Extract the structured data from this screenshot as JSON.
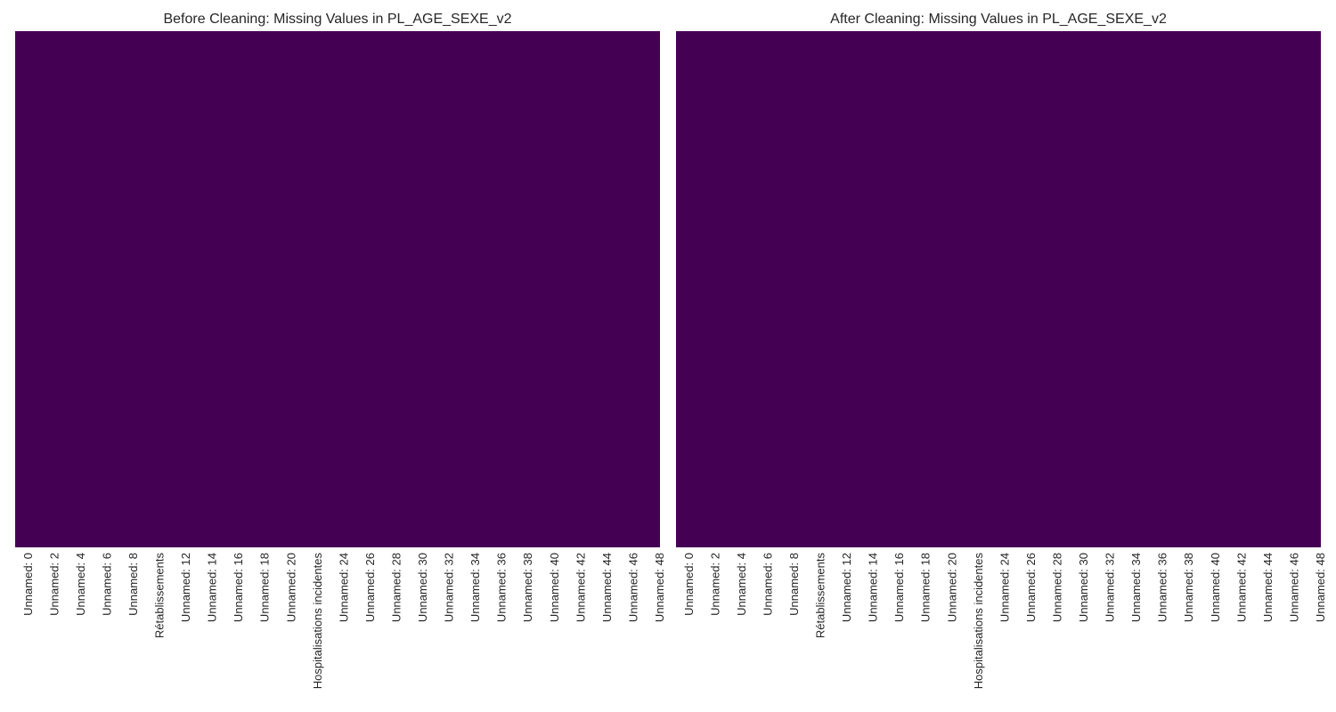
{
  "chart_data": [
    {
      "type": "heatmap",
      "title": "Before Cleaning: Missing Values in PL_AGE_SEXE_v2",
      "x_tick_labels": [
        "Unnamed: 0",
        "Unnamed: 2",
        "Unnamed: 4",
        "Unnamed: 6",
        "Unnamed: 8",
        "Rétablissements",
        "Unnamed: 12",
        "Unnamed: 14",
        "Unnamed: 16",
        "Unnamed: 18",
        "Unnamed: 20",
        "Hospitalisations incidentes",
        "Unnamed: 24",
        "Unnamed: 26",
        "Unnamed: 28",
        "Unnamed: 30",
        "Unnamed: 32",
        "Unnamed: 34",
        "Unnamed: 36",
        "Unnamed: 38",
        "Unnamed: 40",
        "Unnamed: 42",
        "Unnamed: 44",
        "Unnamed: 46",
        "Unnamed: 48"
      ],
      "y_tick_labels": [],
      "missing_cells": 0,
      "fill_color": "#440154",
      "colorbar": false,
      "grid": false
    },
    {
      "type": "heatmap",
      "title": "After Cleaning: Missing Values in PL_AGE_SEXE_v2",
      "x_tick_labels": [
        "Unnamed: 0",
        "Unnamed: 2",
        "Unnamed: 4",
        "Unnamed: 6",
        "Unnamed: 8",
        "Rétablissements",
        "Unnamed: 12",
        "Unnamed: 14",
        "Unnamed: 16",
        "Unnamed: 18",
        "Unnamed: 20",
        "Hospitalisations incidentes",
        "Unnamed: 24",
        "Unnamed: 26",
        "Unnamed: 28",
        "Unnamed: 30",
        "Unnamed: 32",
        "Unnamed: 34",
        "Unnamed: 36",
        "Unnamed: 38",
        "Unnamed: 40",
        "Unnamed: 42",
        "Unnamed: 44",
        "Unnamed: 46",
        "Unnamed: 48"
      ],
      "y_tick_labels": [],
      "missing_cells": 0,
      "fill_color": "#440154",
      "colorbar": false,
      "grid": false
    }
  ]
}
